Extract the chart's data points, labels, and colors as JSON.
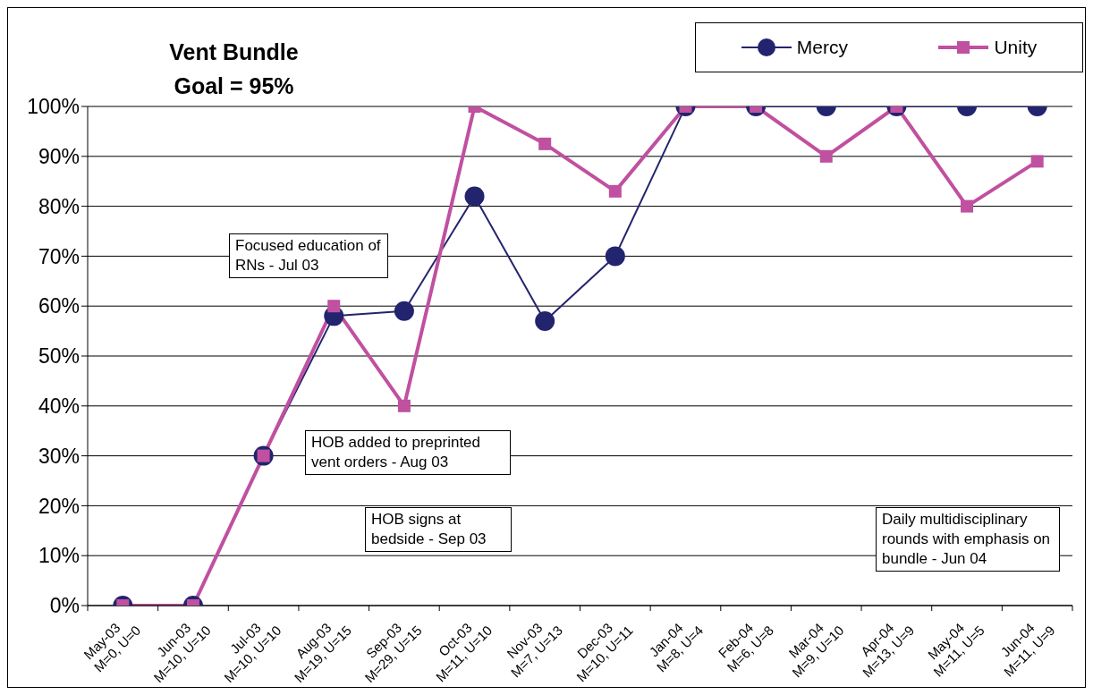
{
  "chart_data": {
    "type": "line",
    "title": "Vent Bundle",
    "subtitle": "Goal = 95%",
    "categories": [
      "May-03\nM=0, U=0",
      "Jun-03\nM=10, U=10",
      "Jul-03\nM=10, U=10",
      "Aug-03\nM=19, U=15",
      "Sep-03\nM=29, U=15",
      "Oct-03\nM=11, U=10",
      "Nov-03\nM=7, U=13",
      "Dec-03\nM=10, U=11",
      "Jan-04\nM=8, U=4",
      "Feb-04\nM=6, U=8",
      "Mar-04\nM=9, U=10",
      "Apr-04\nM=13, U=9",
      "May-04\nM=11, U=5",
      "Jun-04\nM=11, U=9"
    ],
    "series": [
      {
        "name": "Mercy",
        "color": "#22246e",
        "marker": "circle",
        "values": [
          0,
          0,
          30,
          58,
          59,
          82,
          57,
          70,
          100,
          100,
          100,
          100,
          100,
          100
        ]
      },
      {
        "name": "Unity",
        "color": "#c050a0",
        "marker": "square",
        "values": [
          0,
          0,
          30,
          60,
          40,
          100,
          92.5,
          83,
          100,
          100,
          90,
          100,
          80,
          89
        ]
      }
    ],
    "ylim": [
      0,
      100
    ],
    "yticks": [
      {
        "value": 0,
        "label": "0%"
      },
      {
        "value": 10,
        "label": "10%"
      },
      {
        "value": 20,
        "label": "20%"
      },
      {
        "value": 30,
        "label": "30%"
      },
      {
        "value": 40,
        "label": "40%"
      },
      {
        "value": 50,
        "label": "50%"
      },
      {
        "value": 60,
        "label": "60%"
      },
      {
        "value": 70,
        "label": "70%"
      },
      {
        "value": 80,
        "label": "80%"
      },
      {
        "value": 90,
        "label": "90%"
      },
      {
        "value": 100,
        "label": "100%"
      }
    ],
    "grid": "y",
    "legend": "top right",
    "line_style": "solid",
    "annotations": [
      "Focused education of RNs - Jul 03",
      "HOB added to preprinted vent orders - Aug 03",
      "HOB signs at bedside - Sep 03",
      "Daily multidisciplinary rounds with emphasis on bundle - Jun 04"
    ]
  }
}
